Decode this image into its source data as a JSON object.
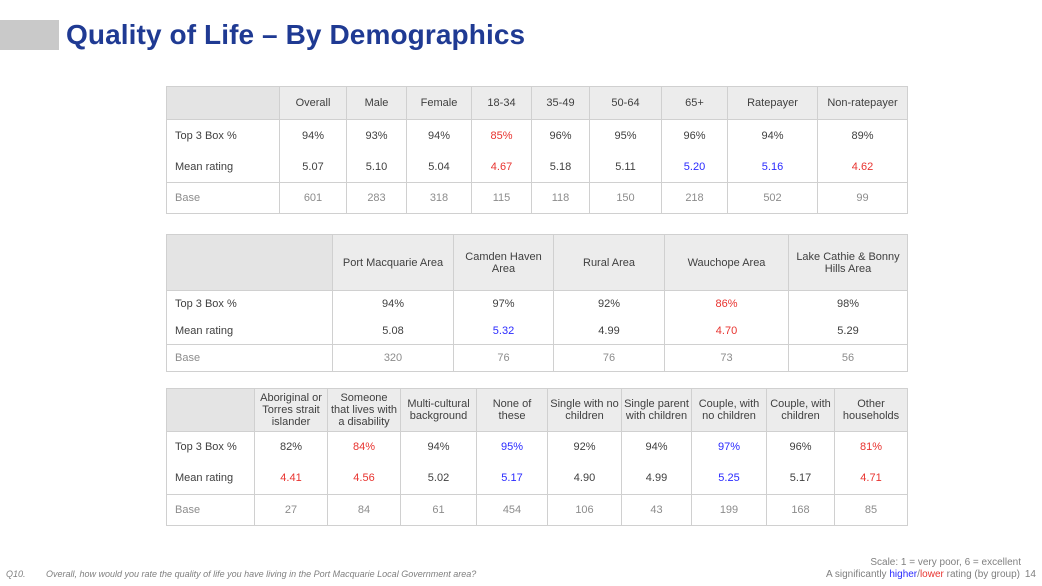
{
  "title": "Quality of Life – By Demographics",
  "table1": {
    "headers": [
      "Overall",
      "Male",
      "Female",
      "18-34",
      "35-49",
      "50-64",
      "65+",
      "Ratepayer",
      "Non-ratepayer"
    ],
    "rows": [
      {
        "label": "Top 3 Box %",
        "values": [
          "94%",
          "93%",
          "94%",
          "85%",
          "96%",
          "95%",
          "96%",
          "94%",
          "89%"
        ]
      },
      {
        "label": "Mean rating",
        "values": [
          "5.07",
          "5.10",
          "5.04",
          "4.67",
          "5.18",
          "5.11",
          "5.20",
          "5.16",
          "4.62"
        ]
      },
      {
        "label": "Base",
        "values": [
          "601",
          "283",
          "318",
          "115",
          "118",
          "150",
          "218",
          "502",
          "99"
        ]
      }
    ]
  },
  "table2": {
    "headers": [
      "Port Macquarie Area",
      "Camden Haven Area",
      "Rural Area",
      "Wauchope Area",
      "Lake Cathie & Bonny Hills Area"
    ],
    "rows": [
      {
        "label": "Top 3 Box %",
        "values": [
          "94%",
          "97%",
          "92%",
          "86%",
          "98%"
        ]
      },
      {
        "label": "Mean rating",
        "values": [
          "5.08",
          "5.32",
          "4.99",
          "4.70",
          "5.29"
        ]
      },
      {
        "label": "Base",
        "values": [
          "320",
          "76",
          "76",
          "73",
          "56"
        ]
      }
    ]
  },
  "table3": {
    "headers": [
      "Aboriginal or Torres strait islander",
      "Someone that lives with a disability",
      "Multi-cultural background",
      "None of these",
      "Single with no children",
      "Single parent with children",
      "Couple, with no children",
      "Couple, with children",
      "Other households"
    ],
    "rows": [
      {
        "label": "Top 3 Box %",
        "values": [
          "82%",
          "84%",
          "94%",
          "95%",
          "92%",
          "94%",
          "97%",
          "96%",
          "81%"
        ]
      },
      {
        "label": "Mean rating",
        "values": [
          "4.41",
          "4.56",
          "5.02",
          "5.17",
          "4.90",
          "4.99",
          "5.25",
          "5.17",
          "4.71"
        ]
      },
      {
        "label": "Base",
        "values": [
          "27",
          "84",
          "61",
          "454",
          "106",
          "43",
          "199",
          "168",
          "85"
        ]
      }
    ]
  },
  "footer": {
    "scale_note": "Scale: 1 = very poor, 6 = excellent",
    "question_number": "Q10.",
    "question_text": "Overall, how would you rate the quality of life you have living in the Port Macquarie Local Government area?",
    "sig_prefix": "A significantly ",
    "sig_higher": "higher",
    "sig_slash": "/",
    "sig_lower": "lower",
    "sig_suffix": " rating (by group)",
    "page_number": "14"
  },
  "colors": {
    "title": "#1f3a93",
    "significantly_lower": "#e8332f",
    "significantly_higher": "#2a2aff"
  }
}
